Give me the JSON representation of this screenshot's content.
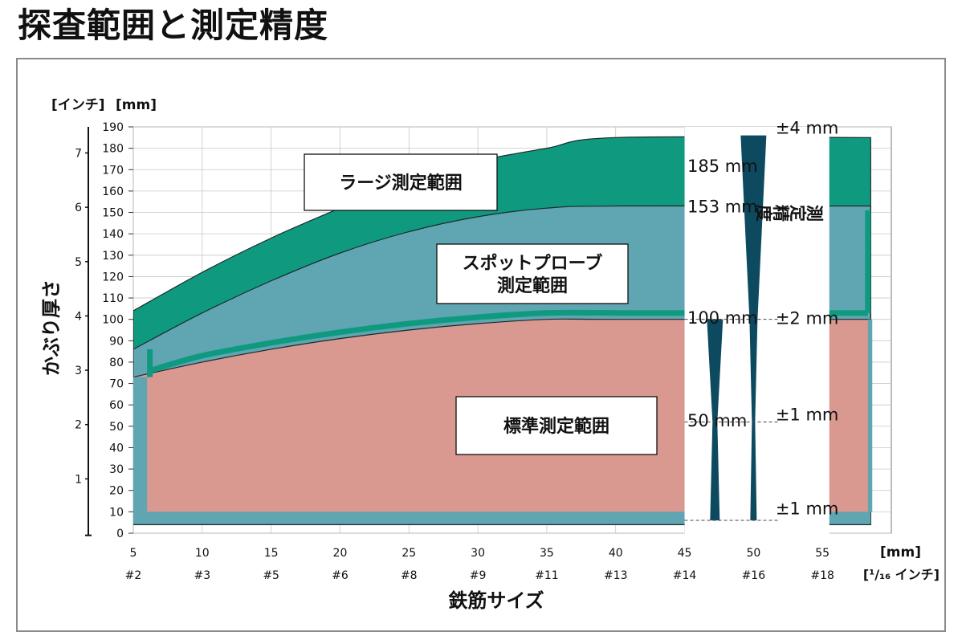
{
  "page_title": "探査範囲と測定精度",
  "colors": {
    "large_range": "#0f9a80",
    "spot_range": "#5fa5b2",
    "standard_range": "#d99890",
    "accuracy_wedge": "#0d4a60",
    "frame": "#8a8a8a",
    "grid": "#c8c8c8"
  },
  "chart_data": {
    "type": "area",
    "y_unit_labels": [
      "[インチ]",
      "[mm]"
    ],
    "ylabel": "かぶり厚さ",
    "xlabel": "鉄筋サイズ",
    "x_unit_top": "[mm]",
    "x_unit_bottom": "[¹/₁₆ インチ]",
    "xlim": [
      5,
      60
    ],
    "ylim": [
      0,
      190
    ],
    "y_ticks_mm": [
      0,
      10,
      20,
      30,
      40,
      50,
      60,
      70,
      80,
      90,
      100,
      110,
      120,
      130,
      140,
      150,
      160,
      170,
      180,
      190
    ],
    "y_ticks_inch": [
      1,
      2,
      3,
      4,
      5,
      6,
      7
    ],
    "x_ticks_mm": [
      5,
      10,
      15,
      20,
      25,
      30,
      35,
      40,
      45,
      50,
      55
    ],
    "x_ticks_bar": [
      "#2",
      "#3",
      "#5",
      "#6",
      "#8",
      "#9",
      "#11",
      "#13",
      "#14",
      "#16",
      "#18"
    ],
    "grid": true,
    "series": [
      {
        "name": "ラージ測定範囲",
        "x": [
          5,
          10,
          15,
          20,
          25,
          30,
          35,
          40,
          58.5
        ],
        "values": [
          104,
          122,
          138,
          152,
          165,
          174,
          180,
          185,
          185
        ]
      },
      {
        "name": "スポットプローブ測定範囲",
        "x": [
          5,
          10,
          15,
          20,
          25,
          30,
          35,
          40,
          58.5
        ],
        "values": [
          86,
          103,
          118,
          131,
          141,
          148,
          152,
          153,
          153
        ]
      },
      {
        "name": "標準測定範囲",
        "x": [
          5,
          10,
          15,
          20,
          25,
          30,
          35,
          40,
          58.5
        ],
        "values": [
          73,
          80,
          86,
          91,
          95,
          98,
          100,
          100,
          100
        ]
      }
    ],
    "accuracy_label": "測定精度",
    "accuracy_depths": [
      {
        "depth": "185 mm",
        "tolerance": "±4 mm"
      },
      {
        "depth": "153 mm",
        "tolerance": ""
      },
      {
        "depth": "100 mm",
        "tolerance": "±2 mm"
      },
      {
        "depth": "50 mm",
        "tolerance": "±1 mm"
      },
      {
        "depth": "",
        "tolerance": "±1 mm"
      }
    ]
  }
}
